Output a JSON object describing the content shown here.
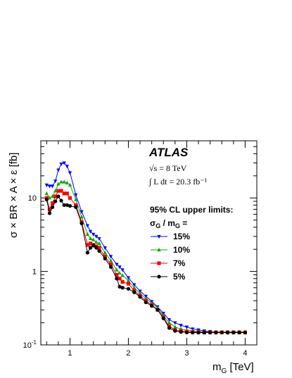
{
  "chart_data": {
    "type": "line",
    "title": "",
    "xlabel": "m_G [TeV]",
    "ylabel": "σ × BR × A × ε [fb]",
    "xlim": [
      0.5,
      4.2
    ],
    "ylim": [
      0.1,
      60
    ],
    "yscale": "log",
    "x_ticks": [
      "1",
      "2",
      "3",
      "4"
    ],
    "y_ticks": [
      "10^-1",
      "1",
      "10"
    ],
    "grid": false,
    "atlas_label": "ATLAS",
    "energy_label": "√s = 8 TeV",
    "lumi_label": "∫ L dt = 20.3 fb⁻¹",
    "legend": {
      "placement": "top-right",
      "title_line1": "95% CL upper limits:",
      "title_line2": "σG / mG ="
    },
    "x": [
      0.6,
      0.65,
      0.7,
      0.75,
      0.8,
      0.85,
      0.9,
      0.95,
      1.0,
      1.1,
      1.2,
      1.3,
      1.35,
      1.4,
      1.45,
      1.5,
      1.6,
      1.7,
      1.8,
      1.85,
      1.9,
      2.0,
      2.1,
      2.2,
      2.3,
      2.4,
      2.5,
      2.6,
      2.7,
      2.8,
      2.9,
      3.0,
      3.1,
      3.2,
      3.3,
      3.4,
      3.5,
      3.6,
      3.7,
      3.8,
      3.9,
      4.0
    ],
    "series": [
      {
        "name": "15%",
        "color": "#0000ff",
        "marker": "triangle-down",
        "values": [
          15.0,
          14.5,
          14.5,
          17.0,
          24.0,
          29.0,
          30.0,
          27.0,
          22.0,
          11.0,
          6.5,
          4.2,
          3.5,
          3.2,
          3.0,
          2.8,
          2.1,
          1.6,
          1.25,
          1.15,
          1.05,
          0.82,
          0.66,
          0.54,
          0.46,
          0.39,
          0.33,
          0.27,
          0.22,
          0.2,
          0.185,
          0.175,
          0.165,
          0.16,
          0.155,
          0.152,
          0.15,
          0.15,
          0.15,
          0.15,
          0.15,
          0.15
        ]
      },
      {
        "name": "10%",
        "color": "#00aa00",
        "marker": "triangle-up",
        "values": [
          11.5,
          10.0,
          10.5,
          12.5,
          15.5,
          16.5,
          16.5,
          16.0,
          15.0,
          9.5,
          5.5,
          3.2,
          2.8,
          2.7,
          2.5,
          2.4,
          1.8,
          1.4,
          1.05,
          0.95,
          0.88,
          0.75,
          0.6,
          0.5,
          0.43,
          0.37,
          0.32,
          0.25,
          0.2,
          0.175,
          0.165,
          0.158,
          0.154,
          0.152,
          0.15,
          0.15,
          0.15,
          0.15,
          0.15,
          0.15,
          0.15,
          0.15
        ]
      },
      {
        "name": "7%",
        "color": "#ff0000",
        "marker": "square",
        "values": [
          10.0,
          7.0,
          8.5,
          10.5,
          12.5,
          12.5,
          11.5,
          11.5,
          10.0,
          8.0,
          4.7,
          2.3,
          2.4,
          2.3,
          2.2,
          2.1,
          1.6,
          1.25,
          0.9,
          0.8,
          0.72,
          0.68,
          0.55,
          0.47,
          0.4,
          0.35,
          0.3,
          0.24,
          0.18,
          0.16,
          0.155,
          0.152,
          0.15,
          0.149,
          0.148,
          0.148,
          0.148,
          0.148,
          0.148,
          0.148,
          0.148,
          0.148
        ]
      },
      {
        "name": "5%",
        "color": "#000000",
        "marker": "circle",
        "values": [
          9.5,
          6.2,
          7.5,
          9.0,
          10.5,
          9.2,
          8.0,
          8.0,
          7.8,
          7.5,
          4.5,
          1.8,
          2.1,
          2.25,
          2.1,
          1.9,
          1.5,
          1.15,
          0.8,
          0.62,
          0.6,
          0.58,
          0.52,
          0.45,
          0.38,
          0.34,
          0.3,
          0.23,
          0.17,
          0.155,
          0.15,
          0.148,
          0.147,
          0.147,
          0.147,
          0.147,
          0.147,
          0.147,
          0.147,
          0.147,
          0.147,
          0.147
        ]
      }
    ]
  }
}
